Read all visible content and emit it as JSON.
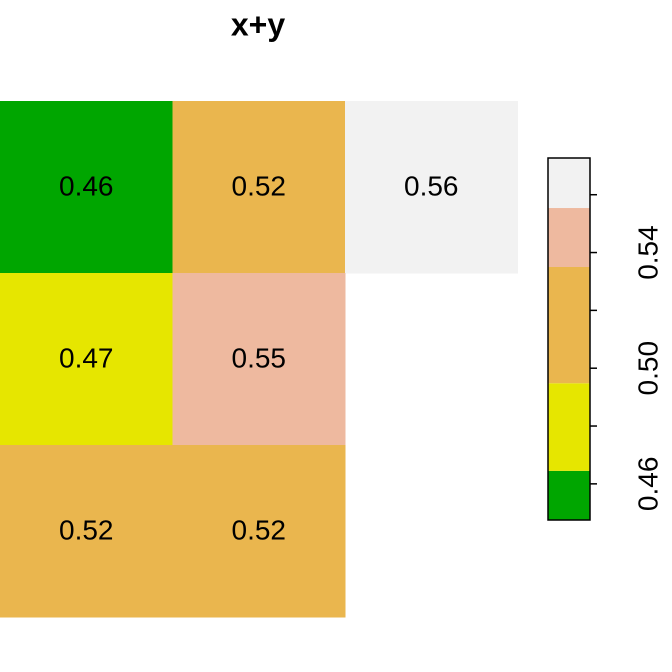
{
  "chart_data": {
    "type": "raster",
    "title": "x+y",
    "rows": [
      [
        0.46,
        0.52,
        0.56
      ],
      [
        0.47,
        0.55,
        null
      ],
      [
        0.52,
        0.52,
        null
      ]
    ],
    "legend": {
      "breaks": [
        0.4475,
        0.4645,
        0.4948,
        0.535,
        0.5554,
        0.5727
      ],
      "colors": [
        "#00A600",
        "#E6E600",
        "#EAB64E",
        "#EEB99F",
        "#F2F2F2"
      ]
    },
    "ylim": [
      0.4475,
      0.5727
    ],
    "yticks": [
      {
        "value": 0.46,
        "label": "0.46"
      },
      {
        "value": 0.5,
        "label": "0.50"
      },
      {
        "value": 0.54,
        "label": "0.54"
      }
    ],
    "minor_yticks": [
      0.48,
      0.52,
      0.56
    ]
  }
}
